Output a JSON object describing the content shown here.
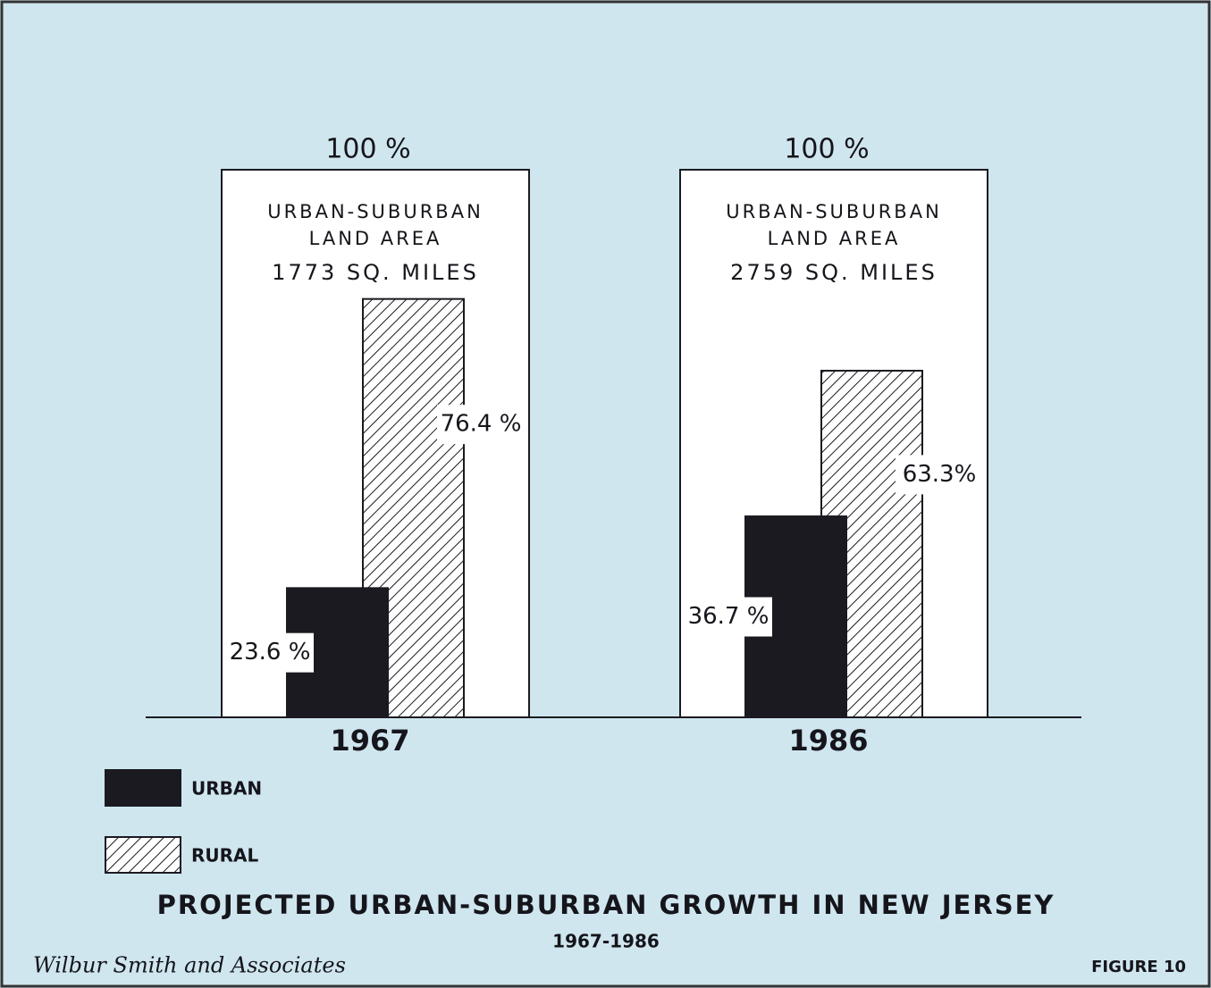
{
  "chart_data": {
    "type": "bar",
    "title": "PROJECTED URBAN-SUBURBAN GROWTH IN NEW JERSEY",
    "subtitle": "1967-1986",
    "categories": [
      "1967",
      "1986"
    ],
    "ylim": [
      0,
      100
    ],
    "totals": {
      "values": [
        100,
        100
      ],
      "value_labels": [
        "100 %",
        "100 %"
      ]
    },
    "annotations": [
      [
        "URBAN-SUBURBAN",
        "LAND AREA",
        "1773 SQ. MILES"
      ],
      [
        "URBAN-SUBURBAN",
        "LAND AREA",
        "2759 SQ. MILES"
      ]
    ],
    "series": [
      {
        "name": "URBAN",
        "color": "#1a1a20",
        "values": [
          23.6,
          36.7
        ],
        "value_labels": [
          "23.6 %",
          "36.7 %"
        ]
      },
      {
        "name": "RURAL",
        "color": "#ffffff",
        "pattern": "hatch",
        "values": [
          76.4,
          63.3
        ],
        "value_labels": [
          "76.4 %",
          "63.3%"
        ]
      }
    ],
    "footer_left": "Wilbur Smith and Associates",
    "footer_right": "FIGURE 10"
  }
}
